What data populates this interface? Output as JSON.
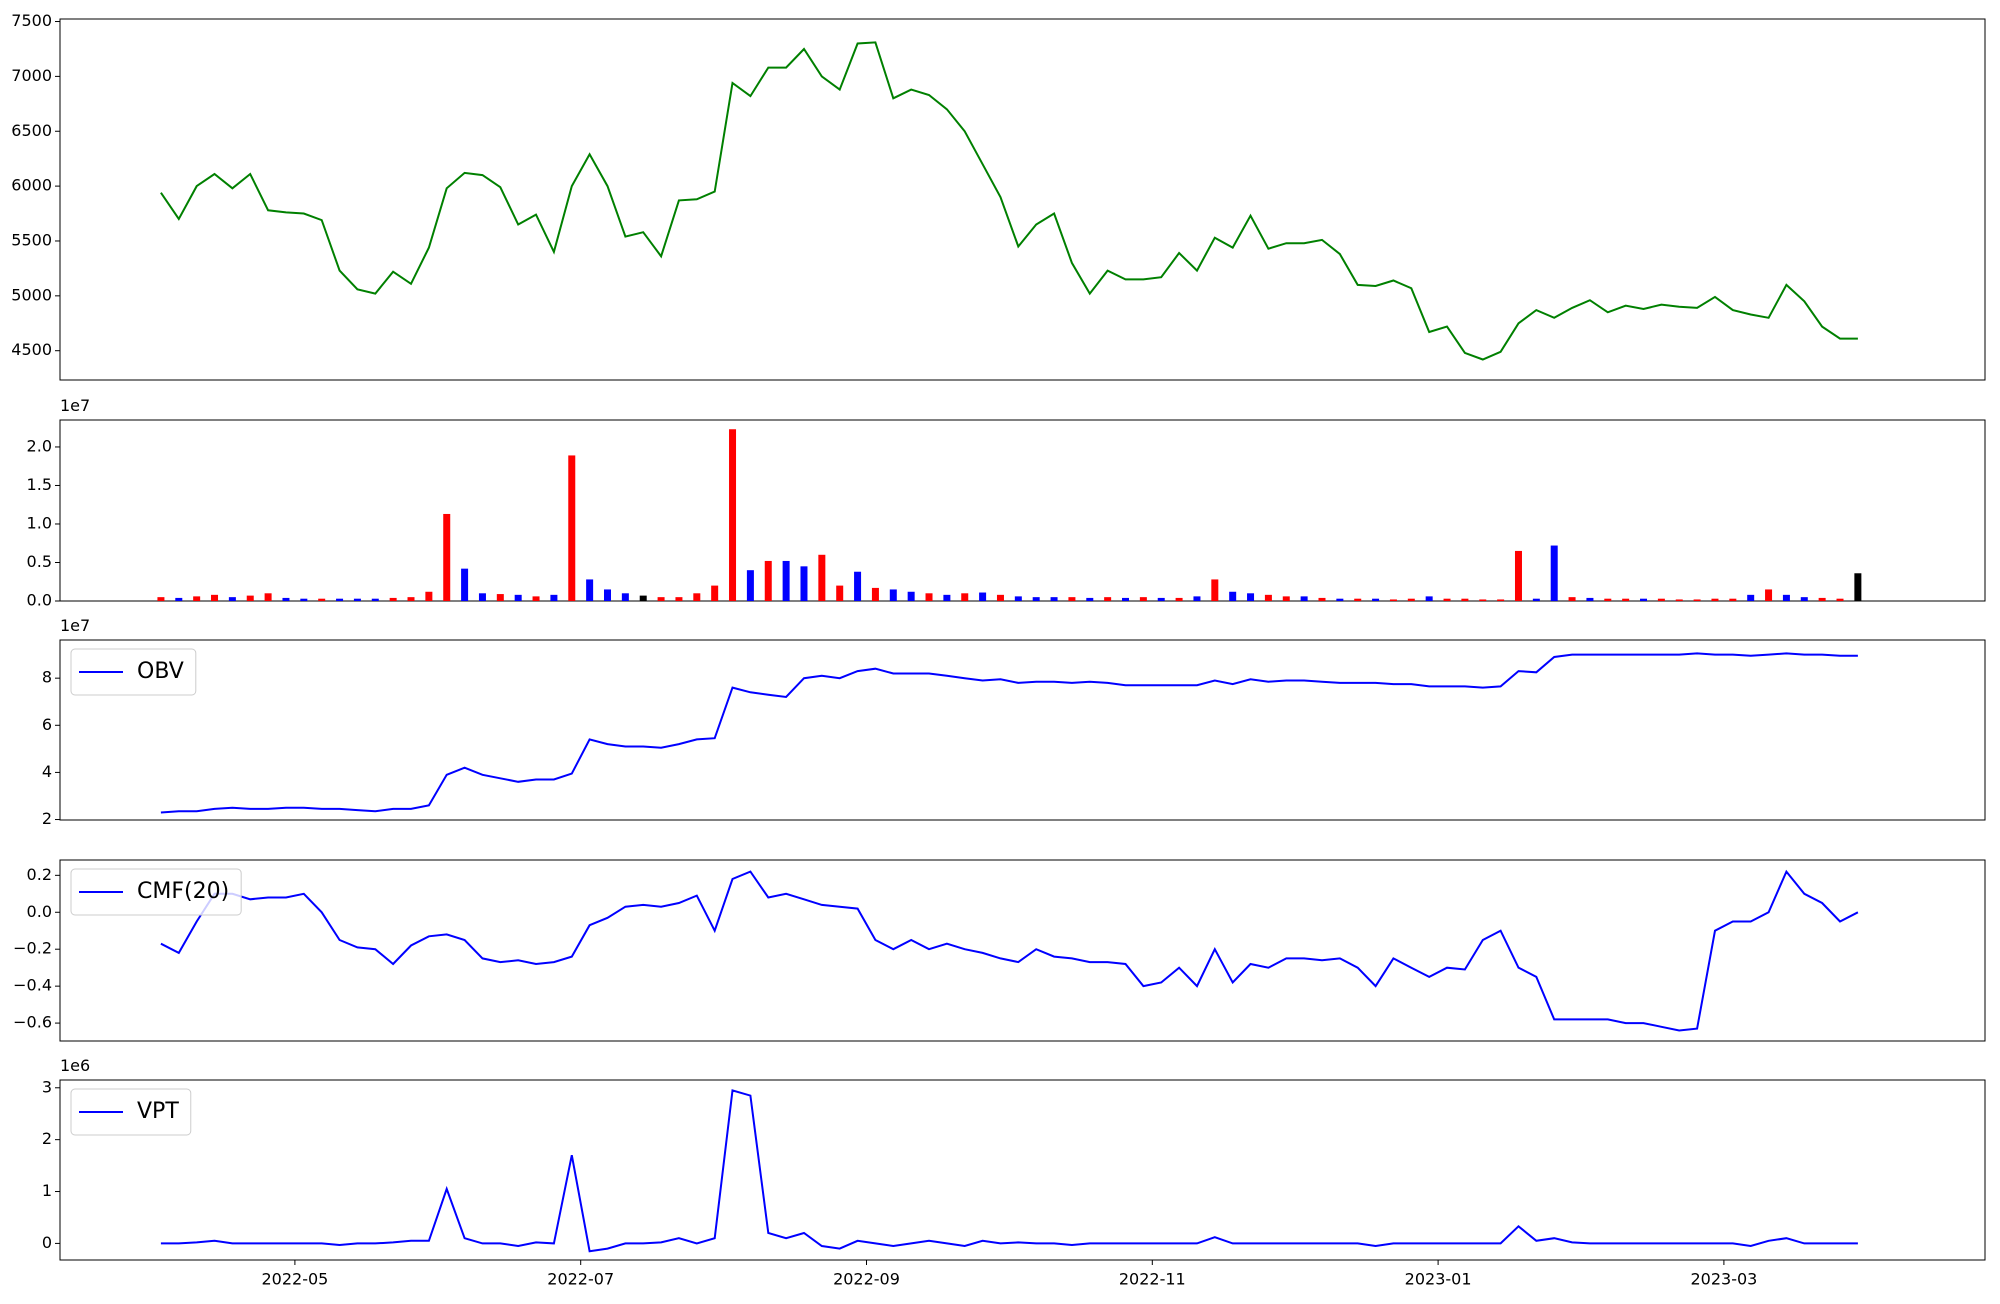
{
  "chart_data": {
    "type": "multi-panel",
    "x": [
      "2022-04",
      "2022-04",
      "2022-04",
      "2022-04",
      "2022-04",
      "2022-04",
      "2022-04",
      "2022-04",
      "2022-05",
      "2022-05",
      "2022-05",
      "2022-05",
      "2022-05",
      "2022-05",
      "2022-05",
      "2022-05",
      "2022-06",
      "2022-06",
      "2022-06",
      "2022-06",
      "2022-06",
      "2022-06",
      "2022-06",
      "2022-06",
      "2022-07",
      "2022-07",
      "2022-07",
      "2022-07",
      "2022-07",
      "2022-07",
      "2022-07",
      "2022-07",
      "2022-08",
      "2022-08",
      "2022-08",
      "2022-08",
      "2022-08",
      "2022-08",
      "2022-08",
      "2022-08",
      "2022-09",
      "2022-09",
      "2022-09",
      "2022-09",
      "2022-09",
      "2022-09",
      "2022-09",
      "2022-09",
      "2022-10",
      "2022-10",
      "2022-10",
      "2022-10",
      "2022-10",
      "2022-10",
      "2022-10",
      "2022-10",
      "2022-11",
      "2022-11",
      "2022-11",
      "2022-11",
      "2022-11",
      "2022-11",
      "2022-11",
      "2022-11",
      "2022-12",
      "2022-12",
      "2022-12",
      "2022-12",
      "2022-12",
      "2022-12",
      "2022-12",
      "2022-12",
      "2023-01",
      "2023-01",
      "2023-01",
      "2023-01",
      "2023-01",
      "2023-01",
      "2023-01",
      "2023-01",
      "2023-02",
      "2023-02",
      "2023-02",
      "2023-02",
      "2023-02",
      "2023-02",
      "2023-02",
      "2023-02",
      "2023-03",
      "2023-03",
      "2023-03",
      "2023-03",
      "2023-03",
      "2023-03",
      "2023-03",
      "2023-03"
    ],
    "xticks": [
      "2022-05",
      "2022-07",
      "2022-09",
      "2022-11",
      "2023-01",
      "2023-03"
    ],
    "panels": [
      {
        "type": "line",
        "ylim": [
          4233,
          7523
        ],
        "yticks": [
          4500,
          5000,
          5500,
          6000,
          6500,
          7000,
          7500
        ],
        "series": [
          {
            "color": "#008000",
            "values": [
              5940,
              5700,
              6000,
              6110,
              5980,
              6110,
              5780,
              5760,
              5750,
              5690,
              5230,
              5060,
              5020,
              5220,
              5110,
              5440,
              5980,
              6120,
              6100,
              5990,
              5650,
              5740,
              5400,
              6000,
              6290,
              6000,
              5540,
              5580,
              5360,
              5870,
              5880,
              5950,
              6940,
              6820,
              7080,
              7080,
              7250,
              7000,
              6880,
              7300,
              7310,
              6800,
              6880,
              6830,
              6700,
              6500,
              6200,
              5900,
              5450,
              5650,
              5750,
              5300,
              5020,
              5230,
              5150,
              5150,
              5170,
              5390,
              5230,
              5530,
              5440,
              5730,
              5430,
              5480,
              5480,
              5510,
              5380,
              5100,
              5090,
              5140,
              5070,
              4670,
              4720,
              4480,
              4420,
              4490,
              4750,
              4870,
              4800,
              4890,
              4960,
              4850,
              4910,
              4880,
              4920,
              4900,
              4890,
              4990,
              4870,
              4830,
              4800,
              5100,
              4950,
              4720,
              4610,
              4610
            ]
          }
        ]
      },
      {
        "type": "bar",
        "ylim": [
          0,
          2.35
        ],
        "offset_label": "1e7",
        "yticks": [
          {
            "value": 0,
            "label": "0.0"
          },
          {
            "value": 0.5,
            "label": "0.5"
          },
          {
            "value": 1,
            "label": "1.0"
          },
          {
            "value": 1.5,
            "label": "1.5"
          },
          {
            "value": 2,
            "label": "2.0"
          }
        ],
        "series": [
          {
            "values": [
              0.05,
              0.04,
              0.06,
              0.08,
              0.05,
              0.07,
              0.1,
              0.04,
              0.03,
              0.03,
              0.03,
              0.03,
              0.03,
              0.04,
              0.05,
              0.12,
              1.13,
              0.42,
              0.1,
              0.09,
              0.08,
              0.06,
              0.08,
              1.89,
              0.28,
              0.15,
              0.1,
              0.07,
              0.05,
              0.05,
              0.1,
              0.2,
              2.23,
              0.4,
              0.52,
              0.52,
              0.45,
              0.6,
              0.2,
              0.38,
              0.17,
              0.15,
              0.12,
              0.1,
              0.08,
              0.1,
              0.11,
              0.08,
              0.06,
              0.05,
              0.05,
              0.05,
              0.04,
              0.05,
              0.04,
              0.05,
              0.04,
              0.04,
              0.06,
              0.28,
              0.12,
              0.1,
              0.08,
              0.06,
              0.06,
              0.04,
              0.03,
              0.03,
              0.03,
              0.02,
              0.03,
              0.06,
              0.03,
              0.03,
              0.02,
              0.02,
              0.65,
              0.03,
              0.72,
              0.05,
              0.04,
              0.03,
              0.03,
              0.03,
              0.03,
              0.02,
              0.02,
              0.03,
              0.03,
              0.08,
              0.15,
              0.08,
              0.05,
              0.04,
              0.03,
              0.36
            ],
            "colors": [
              "red",
              "blue",
              "red",
              "red",
              "blue",
              "red",
              "red",
              "blue",
              "blue",
              "red",
              "blue",
              "blue",
              "blue",
              "red",
              "red",
              "red",
              "red",
              "blue",
              "blue",
              "red",
              "blue",
              "red",
              "blue",
              "red",
              "blue",
              "blue",
              "blue",
              "black",
              "red",
              "red",
              "red",
              "red",
              "red",
              "blue",
              "red",
              "blue",
              "blue",
              "red",
              "red",
              "blue",
              "red",
              "blue",
              "blue",
              "red",
              "blue",
              "red",
              "blue",
              "red",
              "blue",
              "blue",
              "blue",
              "red",
              "blue",
              "red",
              "blue",
              "red",
              "blue",
              "red",
              "blue",
              "red",
              "blue",
              "blue",
              "red",
              "red",
              "blue",
              "red",
              "blue",
              "red",
              "blue",
              "red",
              "red",
              "blue",
              "red",
              "red",
              "red",
              "red",
              "red",
              "blue",
              "blue",
              "red",
              "blue",
              "red",
              "red",
              "blue",
              "red",
              "red",
              "red",
              "red",
              "red",
              "blue",
              "red",
              "blue",
              "blue",
              "red",
              "red",
              "black"
            ]
          }
        ]
      },
      {
        "type": "line",
        "ylim": [
          1.98,
          9.62
        ],
        "yticks": [
          2,
          4,
          6,
          8
        ],
        "offset_label": "1e7",
        "legend": "upper left",
        "series": [
          {
            "name": "OBV",
            "color": "blue",
            "values": [
              2.3,
              2.35,
              2.35,
              2.45,
              2.5,
              2.45,
              2.45,
              2.5,
              2.5,
              2.45,
              2.45,
              2.4,
              2.35,
              2.45,
              2.45,
              2.6,
              3.9,
              4.2,
              3.9,
              3.75,
              3.6,
              3.7,
              3.7,
              3.95,
              5.4,
              5.2,
              5.1,
              5.1,
              5.05,
              5.2,
              5.4,
              5.45,
              7.6,
              7.4,
              7.3,
              7.2,
              8.0,
              8.1,
              8.0,
              8.3,
              8.4,
              8.2,
              8.2,
              8.2,
              8.1,
              8.0,
              7.9,
              7.95,
              7.8,
              7.85,
              7.85,
              7.8,
              7.85,
              7.8,
              7.7,
              7.7,
              7.7,
              7.7,
              7.7,
              7.9,
              7.75,
              7.95,
              7.85,
              7.9,
              7.9,
              7.85,
              7.8,
              7.8,
              7.8,
              7.75,
              7.75,
              7.65,
              7.65,
              7.65,
              7.6,
              7.65,
              8.3,
              8.25,
              8.9,
              9.0,
              9.0,
              9.0,
              9.0,
              9.0,
              9.0,
              9.0,
              9.05,
              9.0,
              9.0,
              8.95,
              9.0,
              9.05,
              9.0,
              9.0,
              8.95,
              8.95
            ]
          }
        ]
      },
      {
        "type": "line",
        "ylim": [
          -0.697,
          0.283
        ],
        "legend": "upper left",
        "yticks": [
          {
            "value": -0.6,
            "label": "−0.6"
          },
          {
            "value": -0.4,
            "label": "−0.4"
          },
          {
            "value": -0.2,
            "label": "−0.2"
          },
          {
            "value": 0,
            "label": "0.0"
          },
          {
            "value": 0.2,
            "label": "0.2"
          }
        ],
        "series": [
          {
            "name": "CMF(20)",
            "color": "blue",
            "values": [
              -0.17,
              -0.22,
              -0.05,
              0.1,
              0.1,
              0.07,
              0.08,
              0.08,
              0.1,
              0.0,
              -0.15,
              -0.19,
              -0.2,
              -0.28,
              -0.18,
              -0.13,
              -0.12,
              -0.15,
              -0.25,
              -0.27,
              -0.26,
              -0.28,
              -0.27,
              -0.24,
              -0.07,
              -0.03,
              0.03,
              0.04,
              0.03,
              0.05,
              0.09,
              -0.1,
              0.18,
              0.22,
              0.08,
              0.1,
              0.07,
              0.04,
              0.03,
              0.02,
              -0.15,
              -0.2,
              -0.15,
              -0.2,
              -0.17,
              -0.2,
              -0.22,
              -0.25,
              -0.27,
              -0.2,
              -0.24,
              -0.25,
              -0.27,
              -0.27,
              -0.28,
              -0.4,
              -0.38,
              -0.3,
              -0.4,
              -0.2,
              -0.38,
              -0.28,
              -0.3,
              -0.25,
              -0.25,
              -0.26,
              -0.25,
              -0.3,
              -0.4,
              -0.25,
              -0.3,
              -0.35,
              -0.3,
              -0.31,
              -0.15,
              -0.1,
              -0.3,
              -0.35,
              -0.58,
              -0.58,
              -0.58,
              -0.58,
              -0.6,
              -0.6,
              -0.62,
              -0.64,
              -0.63,
              -0.1,
              -0.05,
              -0.05,
              0.0,
              0.22,
              0.1,
              0.05,
              -0.05,
              0.0
            ]
          }
        ]
      },
      {
        "type": "line",
        "ylim": [
          -0.32,
          3.15
        ],
        "yticks": [
          0,
          1,
          2,
          3
        ],
        "offset_label": "1e6",
        "legend": "upper left",
        "series": [
          {
            "name": "VPT",
            "color": "blue",
            "values": [
              0,
              0,
              0.02,
              0.05,
              0,
              0,
              0,
              0,
              0,
              0,
              -0.03,
              0,
              0,
              0.02,
              0.05,
              0.05,
              1.05,
              0.1,
              0,
              0,
              -0.05,
              0.02,
              0,
              1.7,
              -0.15,
              -0.1,
              0,
              0,
              0.02,
              0.1,
              0,
              0.1,
              2.95,
              2.85,
              0.2,
              0.1,
              0.2,
              -0.05,
              -0.1,
              0.05,
              0,
              -0.05,
              0,
              0.05,
              0,
              -0.05,
              0.05,
              0,
              0.02,
              0,
              0,
              -0.03,
              0,
              0,
              0,
              0,
              0,
              0,
              0,
              0.12,
              0,
              0,
              0,
              0,
              0,
              0,
              0,
              0,
              -0.05,
              0,
              0,
              0,
              0,
              0,
              0,
              0,
              0.33,
              0.05,
              0.1,
              0.02,
              0,
              0,
              0,
              0,
              0,
              0,
              0,
              0,
              0,
              -0.05,
              0.05,
              0.1,
              0,
              0,
              0,
              0
            ]
          }
        ]
      }
    ]
  }
}
